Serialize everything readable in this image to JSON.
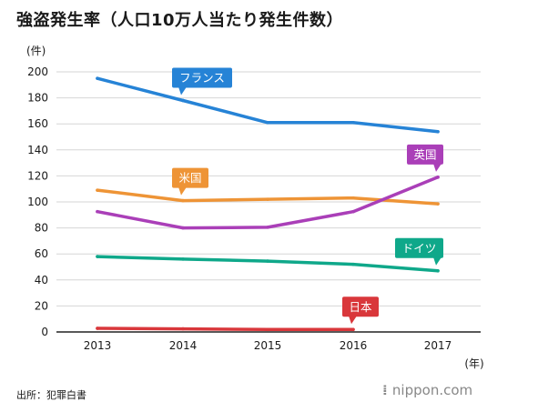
{
  "title": "強盗発生率（人口10万人当たり発生件数）",
  "source": "出所：犯罪白書",
  "credit": {
    "prefix": "⁞ ",
    "name": "nippon",
    "suffix": ".com"
  },
  "chart_data": {
    "type": "line",
    "title": "強盗発生率（人口10万人当たり発生件数）",
    "ylabel": "(件)",
    "xlabel": "(年)",
    "x": [
      "2013",
      "2014",
      "2015",
      "2016",
      "2017"
    ],
    "ylim": [
      0,
      200
    ],
    "yticks": [
      0,
      20,
      40,
      60,
      80,
      100,
      120,
      140,
      160,
      180,
      200
    ],
    "grid": "horizontal",
    "series": [
      {
        "name": "フランス",
        "color": "#2683d6",
        "values": [
          195,
          178,
          161,
          161,
          154
        ],
        "label_anchor_index": 1
      },
      {
        "name": "米国",
        "color": "#ee9436",
        "values": [
          109,
          101,
          102,
          103,
          98.5
        ],
        "label_anchor_index": 1
      },
      {
        "name": "英国",
        "color": "#aa3fb8",
        "values": [
          92.5,
          80,
          80.5,
          92.5,
          119
        ],
        "label_anchor_index": 4
      },
      {
        "name": "ドイツ",
        "color": "#0fa88a",
        "values": [
          58,
          56,
          54.5,
          52,
          47
        ],
        "label_anchor_index": 4
      },
      {
        "name": "日本",
        "color": "#d9373b",
        "values": [
          2.8,
          2.4,
          1.9,
          1.9,
          null
        ],
        "label_anchor_index": 3
      }
    ]
  }
}
